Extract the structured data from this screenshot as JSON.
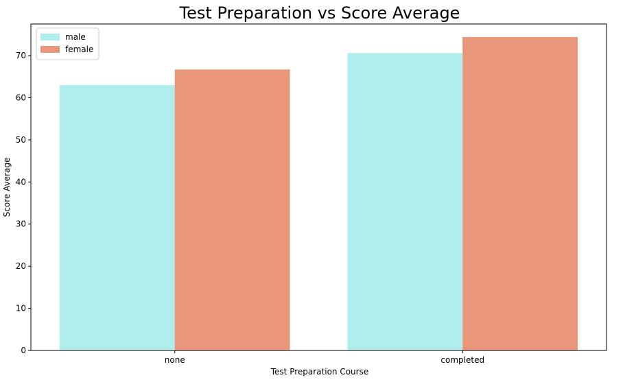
{
  "chart_data": {
    "type": "bar",
    "title": "Test Preparation vs Score Average",
    "xlabel": "Test Preparation Course",
    "ylabel": "Score Average",
    "categories": [
      "none",
      "completed"
    ],
    "series": [
      {
        "name": "male",
        "values": [
          63.0,
          70.6
        ],
        "color": "#b0eded"
      },
      {
        "name": "female",
        "values": [
          66.7,
          74.4
        ],
        "color": "#e9967a"
      }
    ],
    "ylim": [
      0,
      77.5
    ],
    "yticks": [
      "0",
      "10",
      "20",
      "30",
      "40",
      "50",
      "60",
      "70"
    ],
    "grid": false,
    "legend_position": "top-left"
  }
}
